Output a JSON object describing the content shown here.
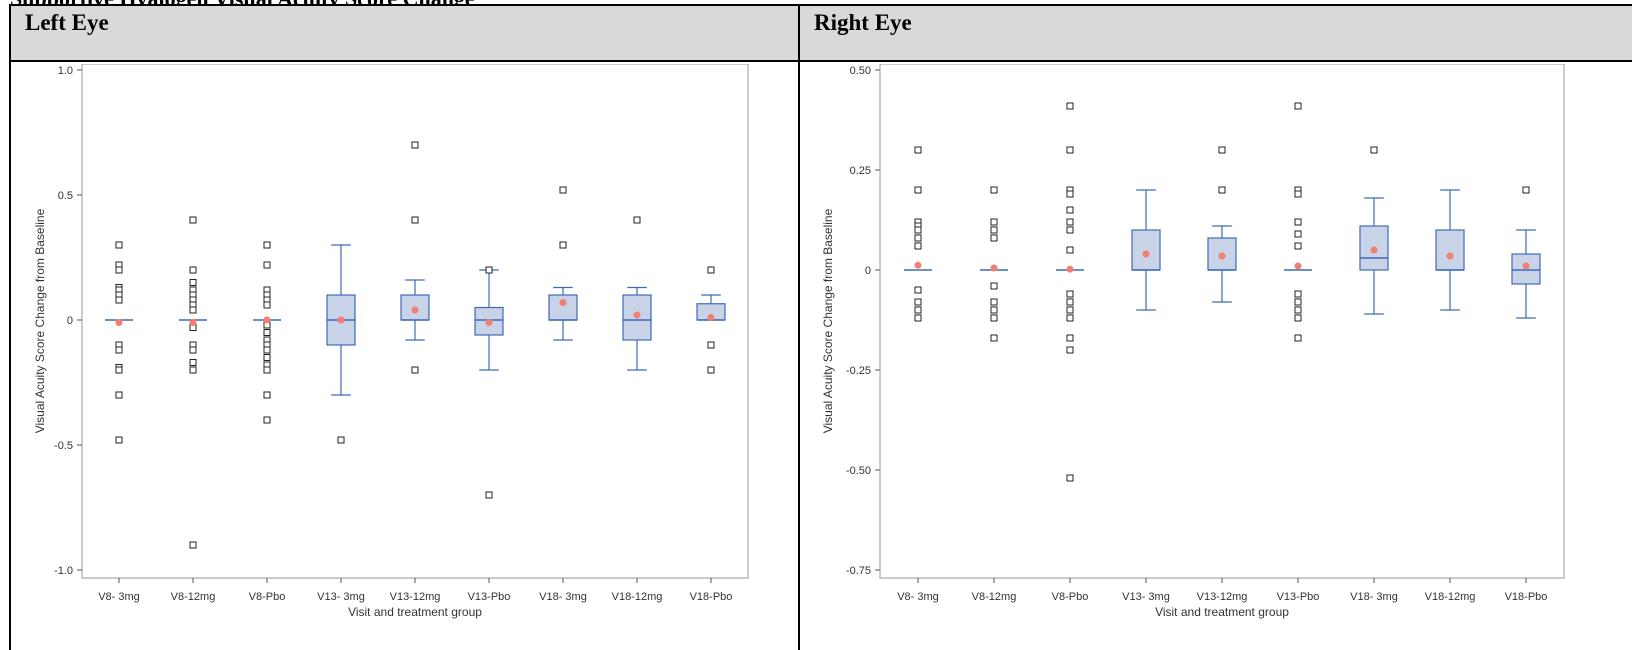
{
  "caption": "Supportive Hyalogen Visual Acuity Score Change",
  "colors": {
    "box_fill": "#c8d3e8",
    "box_stroke": "#3f6ab8",
    "mean": "#f28072",
    "outlier_stroke": "#222222",
    "header_bg": "#d9d9d9"
  },
  "panels": [
    {
      "title": "Left Eye"
    },
    {
      "title": "Right Eye"
    }
  ],
  "chart_data": [
    {
      "type": "box",
      "panel": "Left Eye",
      "ylabel": "Visual Acuity Score Change from Baseline",
      "xlabel": "Visit and treatment group",
      "ylim": [
        -1.0,
        1.0
      ],
      "yticks": [
        -1.0,
        -0.5,
        0,
        0.5,
        1.0
      ],
      "ytick_labels": [
        "-1.0",
        "-0.5",
        "0",
        "0.5",
        "1.0"
      ],
      "categories": [
        "V8- 3mg",
        "V8-12mg",
        "V8-Pbo",
        "V13- 3mg",
        "V13-12mg",
        "V13-Pbo",
        "V18- 3mg",
        "V18-12mg",
        "V18-Pbo"
      ],
      "boxes": [
        {
          "q1": 0,
          "median": 0,
          "q3": 0,
          "whisker_low": 0,
          "whisker_high": 0,
          "mean": -0.01,
          "outliers": [
            0.3,
            0.22,
            0.2,
            0.13,
            0.12,
            0.1,
            0.08,
            -0.1,
            -0.12,
            -0.19,
            -0.2,
            -0.3,
            -0.48
          ]
        },
        {
          "q1": 0,
          "median": 0,
          "q3": 0,
          "whisker_low": 0,
          "whisker_high": 0,
          "mean": -0.01,
          "outliers": [
            0.4,
            0.2,
            0.2,
            0.15,
            0.12,
            0.1,
            0.08,
            0.06,
            0.04,
            -0.03,
            -0.1,
            -0.12,
            -0.17,
            -0.2,
            -0.9
          ]
        },
        {
          "q1": 0,
          "median": 0,
          "q3": 0,
          "whisker_low": 0,
          "whisker_high": 0,
          "mean": 0.0,
          "outliers": [
            0.3,
            0.22,
            0.12,
            0.1,
            0.08,
            0.06,
            -0.02,
            -0.05,
            -0.08,
            -0.1,
            -0.12,
            -0.15,
            -0.18,
            -0.2,
            -0.3,
            -0.4
          ]
        },
        {
          "q1": -0.1,
          "median": 0,
          "q3": 0.1,
          "whisker_low": -0.3,
          "whisker_high": 0.3,
          "mean": 0.0,
          "outliers": [
            -0.48
          ]
        },
        {
          "q1": 0,
          "median": 0,
          "q3": 0.1,
          "whisker_low": -0.08,
          "whisker_high": 0.16,
          "mean": 0.04,
          "outliers": [
            0.7,
            0.4,
            -0.2
          ]
        },
        {
          "q1": -0.06,
          "median": 0,
          "q3": 0.05,
          "whisker_low": -0.2,
          "whisker_high": 0.2,
          "mean": -0.01,
          "outliers": [
            0.2,
            -0.7
          ]
        },
        {
          "q1": 0,
          "median": 0,
          "q3": 0.1,
          "whisker_low": -0.08,
          "whisker_high": 0.13,
          "mean": 0.07,
          "outliers": [
            0.52,
            0.3
          ]
        },
        {
          "q1": -0.08,
          "median": 0,
          "q3": 0.1,
          "whisker_low": -0.2,
          "whisker_high": 0.13,
          "mean": 0.02,
          "outliers": [
            0.4
          ]
        },
        {
          "q1": 0,
          "median": 0,
          "q3": 0.065,
          "whisker_low": 0,
          "whisker_high": 0.1,
          "mean": 0.01,
          "outliers": [
            0.2,
            -0.1,
            -0.2
          ]
        }
      ]
    },
    {
      "type": "box",
      "panel": "Right Eye",
      "ylabel": "Visual Acuity Score Change from Baseline",
      "xlabel": "Visit and treatment group",
      "ylim": [
        -0.75,
        0.5
      ],
      "yticks": [
        -0.75,
        -0.5,
        -0.25,
        0,
        0.25,
        0.5
      ],
      "ytick_labels": [
        "-0.75",
        "-0.50",
        "-0.25",
        "0",
        "0.25",
        "0.50"
      ],
      "categories": [
        "V8- 3mg",
        "V8-12mg",
        "V8-Pbo",
        "V13- 3mg",
        "V13-12mg",
        "V13-Pbo",
        "V18- 3mg",
        "V18-12mg",
        "V18-Pbo"
      ],
      "boxes": [
        {
          "q1": 0,
          "median": 0,
          "q3": 0,
          "whisker_low": 0,
          "whisker_high": 0,
          "mean": 0.012,
          "outliers": [
            0.3,
            0.2,
            0.12,
            0.11,
            0.1,
            0.08,
            0.06,
            -0.05,
            -0.08,
            -0.1,
            -0.12
          ]
        },
        {
          "q1": 0,
          "median": 0,
          "q3": 0,
          "whisker_low": 0,
          "whisker_high": 0,
          "mean": 0.005,
          "outliers": [
            0.2,
            0.12,
            0.1,
            0.08,
            -0.04,
            -0.08,
            -0.1,
            -0.12,
            -0.17
          ]
        },
        {
          "q1": 0,
          "median": 0,
          "q3": 0,
          "whisker_low": 0,
          "whisker_high": 0,
          "mean": 0.002,
          "outliers": [
            0.41,
            0.3,
            0.2,
            0.19,
            0.15,
            0.12,
            0.1,
            0.05,
            -0.06,
            -0.08,
            -0.1,
            -0.12,
            -0.17,
            -0.2,
            -0.52
          ]
        },
        {
          "q1": 0,
          "median": 0,
          "q3": 0.1,
          "whisker_low": -0.1,
          "whisker_high": 0.2,
          "mean": 0.04,
          "outliers": []
        },
        {
          "q1": 0,
          "median": 0,
          "q3": 0.08,
          "whisker_low": -0.08,
          "whisker_high": 0.11,
          "mean": 0.035,
          "outliers": [
            0.3,
            0.2
          ]
        },
        {
          "q1": 0,
          "median": 0,
          "q3": 0,
          "whisker_low": 0,
          "whisker_high": 0,
          "mean": 0.01,
          "outliers": [
            0.41,
            0.2,
            0.19,
            0.12,
            0.09,
            0.06,
            -0.06,
            -0.08,
            -0.1,
            -0.12,
            -0.17
          ]
        },
        {
          "q1": 0,
          "median": 0.03,
          "q3": 0.11,
          "whisker_low": -0.11,
          "whisker_high": 0.18,
          "mean": 0.05,
          "outliers": [
            0.3
          ]
        },
        {
          "q1": 0,
          "median": 0,
          "q3": 0.1,
          "whisker_low": -0.1,
          "whisker_high": 0.2,
          "mean": 0.035,
          "outliers": []
        },
        {
          "q1": -0.035,
          "median": 0,
          "q3": 0.04,
          "whisker_low": -0.12,
          "whisker_high": 0.1,
          "mean": 0.01,
          "outliers": [
            0.2
          ]
        }
      ]
    }
  ]
}
